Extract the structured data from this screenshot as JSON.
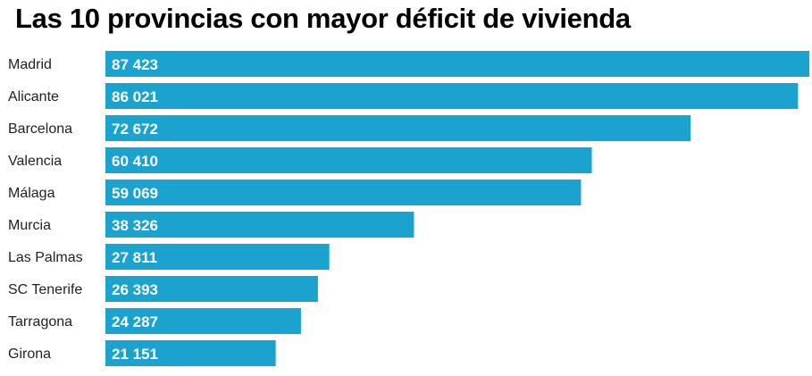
{
  "chart_data": {
    "type": "bar",
    "orientation": "horizontal",
    "title": "Las 10 provincias con mayor déficit de vivienda",
    "categories": [
      "Madrid",
      "Alicante",
      "Barcelona",
      "Valencia",
      "Málaga",
      "Murcia",
      "Las Palmas",
      "SC Tenerife",
      "Tarragona",
      "Girona"
    ],
    "values": [
      87423,
      86021,
      72672,
      60410,
      59069,
      38326,
      27811,
      26393,
      24287,
      21151
    ],
    "value_labels": [
      "87 423",
      "86 021",
      "72 672",
      "60 410",
      "59 069",
      "38 326",
      "27 811",
      "26 393",
      "24 287",
      "21 151"
    ],
    "xlim": [
      0,
      87423
    ],
    "grid": false,
    "legend": "none",
    "bar_color": "#1aa3cf"
  }
}
